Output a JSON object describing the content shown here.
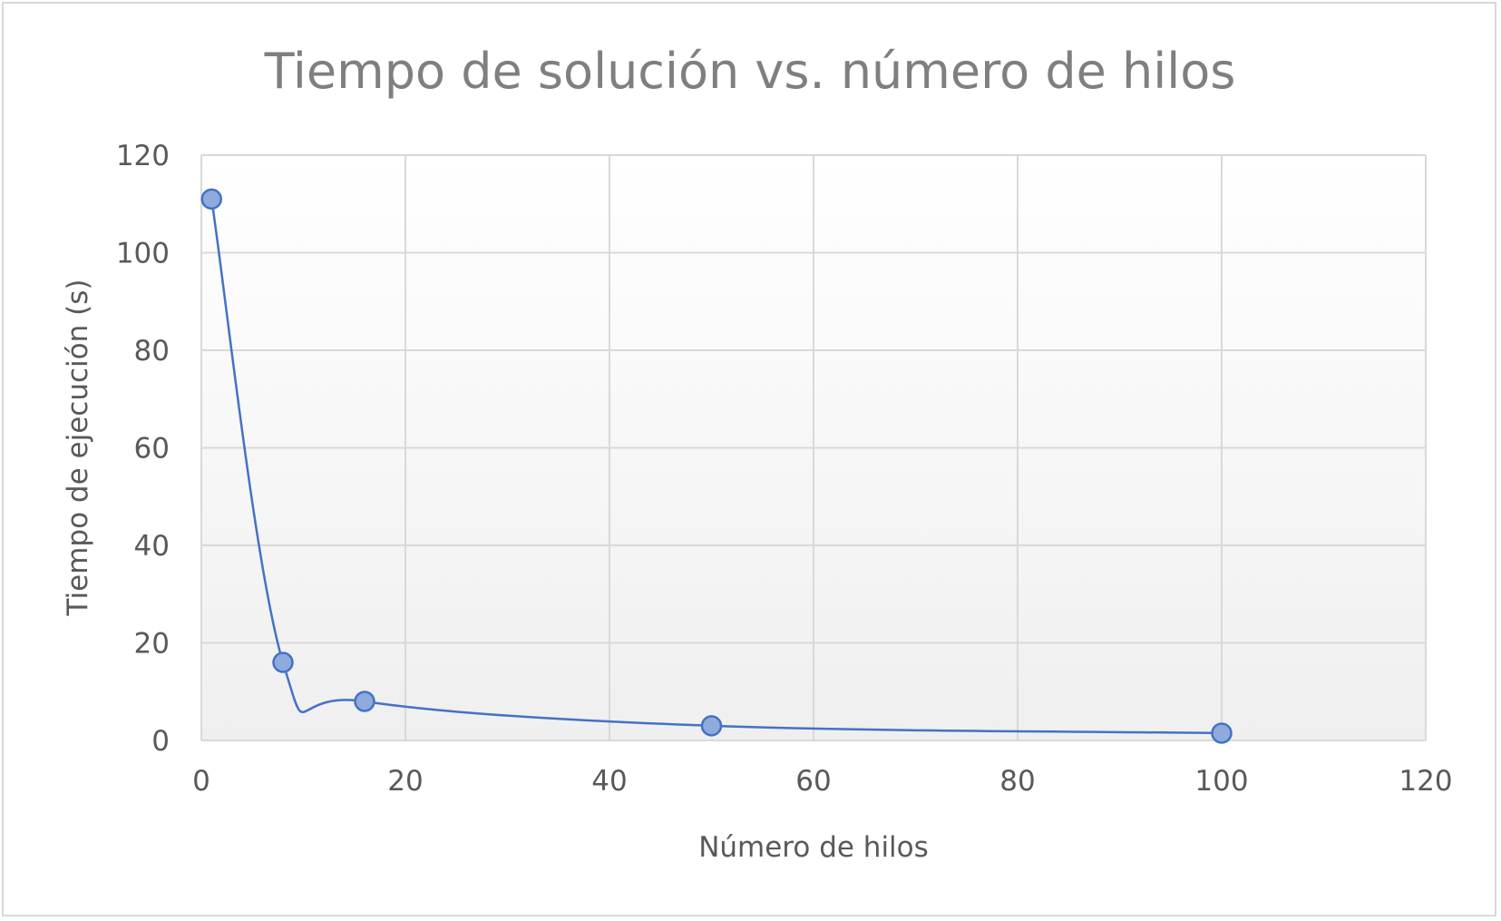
{
  "chart_data": {
    "type": "scatter",
    "title": "Tiempo de solución vs. número de hilos",
    "xlabel": "Número de hilos",
    "ylabel": "Tiempo de ejecución (s)",
    "xlim": [
      0,
      120
    ],
    "ylim": [
      0,
      120
    ],
    "x_ticks": [
      "0",
      "20",
      "40",
      "60",
      "80",
      "100",
      "120"
    ],
    "y_ticks": [
      "0",
      "20",
      "40",
      "60",
      "80",
      "100",
      "120"
    ],
    "grid": true,
    "line": "smooth",
    "series": [
      {
        "color": "#4472c4",
        "marker_fill": "#8faadc",
        "points": [
          {
            "x": 1,
            "y": 111
          },
          {
            "x": 8,
            "y": 16
          },
          {
            "x": 16,
            "y": 8
          },
          {
            "x": 50,
            "y": 3
          },
          {
            "x": 100,
            "y": 1.5
          }
        ]
      }
    ]
  }
}
